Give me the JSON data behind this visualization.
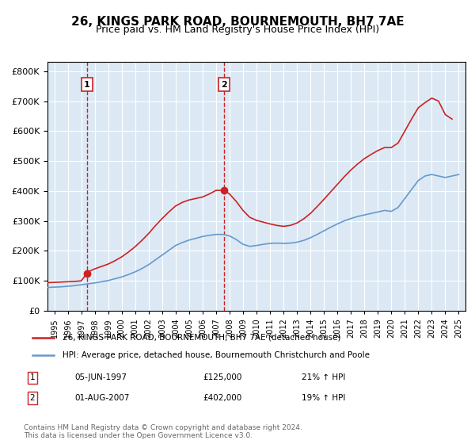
{
  "title": "26, KINGS PARK ROAD, BOURNEMOUTH, BH7 7AE",
  "subtitle": "Price paid vs. HM Land Registry's House Price Index (HPI)",
  "bg_color": "#dce9f5",
  "plot_bg_color": "#dce9f5",
  "red_line_label": "26, KINGS PARK ROAD, BOURNEMOUTH, BH7 7AE (detached house)",
  "blue_line_label": "HPI: Average price, detached house, Bournemouth Christchurch and Poole",
  "footer": "Contains HM Land Registry data © Crown copyright and database right 2024.\nThis data is licensed under the Open Government Licence v3.0.",
  "sale1": {
    "date_label": "05-JUN-1997",
    "price": 125000,
    "pct": "21% ↑ HPI",
    "x": 1997.43
  },
  "sale2": {
    "date_label": "01-AUG-2007",
    "price": 402000,
    "pct": "19% ↑ HPI",
    "x": 2007.58
  },
  "ylim": [
    0,
    830000
  ],
  "xlim": [
    1994.5,
    2025.5
  ],
  "yticks": [
    0,
    100000,
    200000,
    300000,
    400000,
    500000,
    600000,
    700000,
    800000
  ],
  "ytick_labels": [
    "£0",
    "£100K",
    "£200K",
    "£300K",
    "£400K",
    "£500K",
    "£600K",
    "£700K",
    "£800K"
  ],
  "xticks": [
    1995,
    1996,
    1997,
    1998,
    1999,
    2000,
    2001,
    2002,
    2003,
    2004,
    2005,
    2006,
    2007,
    2008,
    2009,
    2010,
    2011,
    2012,
    2013,
    2014,
    2015,
    2016,
    2017,
    2018,
    2019,
    2020,
    2021,
    2022,
    2023,
    2024,
    2025
  ],
  "hpi_x": [
    1994.5,
    1995.0,
    1995.5,
    1996.0,
    1996.5,
    1997.0,
    1997.5,
    1998.0,
    1998.5,
    1999.0,
    1999.5,
    2000.0,
    2000.5,
    2001.0,
    2001.5,
    2002.0,
    2002.5,
    2003.0,
    2003.5,
    2004.0,
    2004.5,
    2005.0,
    2005.5,
    2006.0,
    2006.5,
    2007.0,
    2007.5,
    2008.0,
    2008.5,
    2009.0,
    2009.5,
    2010.0,
    2010.5,
    2011.0,
    2011.5,
    2012.0,
    2012.5,
    2013.0,
    2013.5,
    2014.0,
    2014.5,
    2015.0,
    2015.5,
    2016.0,
    2016.5,
    2017.0,
    2017.5,
    2018.0,
    2018.5,
    2019.0,
    2019.5,
    2020.0,
    2020.5,
    2021.0,
    2021.5,
    2022.0,
    2022.5,
    2023.0,
    2023.5,
    2024.0,
    2024.5,
    2025.0
  ],
  "hpi_y": [
    78000,
    79000,
    80000,
    82000,
    84000,
    87000,
    90000,
    93000,
    97000,
    101000,
    107000,
    113000,
    121000,
    130000,
    141000,
    154000,
    170000,
    186000,
    202000,
    218000,
    228000,
    236000,
    242000,
    248000,
    252000,
    255000,
    255000,
    250000,
    238000,
    222000,
    215000,
    218000,
    222000,
    225000,
    226000,
    225000,
    226000,
    229000,
    235000,
    244000,
    255000,
    267000,
    279000,
    290000,
    300000,
    308000,
    315000,
    320000,
    325000,
    330000,
    335000,
    332000,
    345000,
    375000,
    405000,
    435000,
    450000,
    455000,
    450000,
    445000,
    450000,
    455000
  ],
  "red_x": [
    1994.5,
    1995.0,
    1995.5,
    1996.0,
    1996.5,
    1997.0,
    1997.43,
    1997.5,
    1998.0,
    1998.5,
    1999.0,
    1999.5,
    2000.0,
    2000.5,
    2001.0,
    2001.5,
    2002.0,
    2002.5,
    2003.0,
    2003.5,
    2004.0,
    2004.5,
    2005.0,
    2005.5,
    2006.0,
    2006.5,
    2007.0,
    2007.5,
    2007.58,
    2008.0,
    2008.5,
    2009.0,
    2009.5,
    2010.0,
    2010.5,
    2011.0,
    2011.5,
    2012.0,
    2012.5,
    2013.0,
    2013.5,
    2014.0,
    2014.5,
    2015.0,
    2015.5,
    2016.0,
    2016.5,
    2017.0,
    2017.5,
    2018.0,
    2018.5,
    2019.0,
    2019.5,
    2020.0,
    2020.5,
    2021.0,
    2021.5,
    2022.0,
    2022.5,
    2023.0,
    2023.5,
    2024.0,
    2024.5
  ],
  "red_y": [
    94000,
    95000,
    96000,
    97000,
    98000,
    100000,
    125000,
    130000,
    140000,
    148000,
    156000,
    167000,
    180000,
    196000,
    214000,
    235000,
    258000,
    284000,
    308000,
    330000,
    350000,
    362000,
    370000,
    375000,
    380000,
    390000,
    402000,
    402000,
    402000,
    390000,
    365000,
    335000,
    312000,
    302000,
    296000,
    290000,
    285000,
    282000,
    285000,
    293000,
    307000,
    325000,
    348000,
    372000,
    397000,
    422000,
    447000,
    470000,
    490000,
    508000,
    522000,
    535000,
    545000,
    545000,
    560000,
    600000,
    640000,
    678000,
    695000,
    710000,
    700000,
    655000,
    640000
  ]
}
